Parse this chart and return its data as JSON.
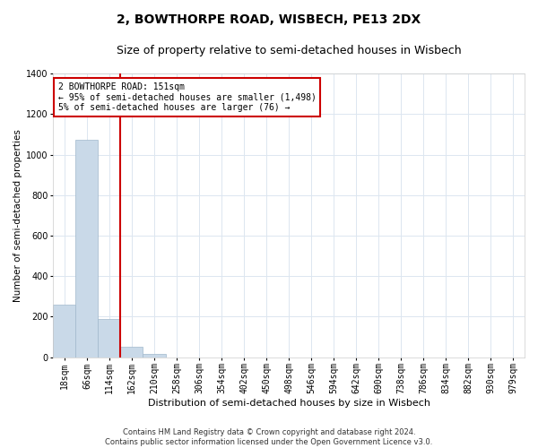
{
  "title_line1": "2, BOWTHORPE ROAD, WISBECH, PE13 2DX",
  "title_line2": "Size of property relative to semi-detached houses in Wisbech",
  "xlabel": "Distribution of semi-detached houses by size in Wisbech",
  "ylabel": "Number of semi-detached properties",
  "footnote": "Contains HM Land Registry data © Crown copyright and database right 2024.\nContains public sector information licensed under the Open Government Licence v3.0.",
  "categories": [
    "18sqm",
    "66sqm",
    "114sqm",
    "162sqm",
    "210sqm",
    "258sqm",
    "306sqm",
    "354sqm",
    "402sqm",
    "450sqm",
    "498sqm",
    "546sqm",
    "594sqm",
    "642sqm",
    "690sqm",
    "738sqm",
    "786sqm",
    "834sqm",
    "882sqm",
    "930sqm",
    "979sqm"
  ],
  "values": [
    260,
    1075,
    190,
    50,
    15,
    0,
    0,
    0,
    0,
    0,
    0,
    0,
    0,
    0,
    0,
    0,
    0,
    0,
    0,
    0,
    0
  ],
  "bar_color": "#c9d9e8",
  "bar_edge_color": "#a0b8cc",
  "vline_color": "#cc0000",
  "annotation_text": "2 BOWTHORPE ROAD: 151sqm\n← 95% of semi-detached houses are smaller (1,498)\n5% of semi-detached houses are larger (76) →",
  "annotation_box_color": "#ffffff",
  "annotation_box_edge": "#cc0000",
  "ylim": [
    0,
    1400
  ],
  "yticks": [
    0,
    200,
    400,
    600,
    800,
    1000,
    1200,
    1400
  ],
  "background_color": "#ffffff",
  "grid_color": "#dce6f0",
  "title_fontsize": 10,
  "subtitle_fontsize": 9,
  "ylabel_fontsize": 7.5,
  "xlabel_fontsize": 8,
  "tick_fontsize": 7,
  "annot_fontsize": 7,
  "footnote_fontsize": 6
}
